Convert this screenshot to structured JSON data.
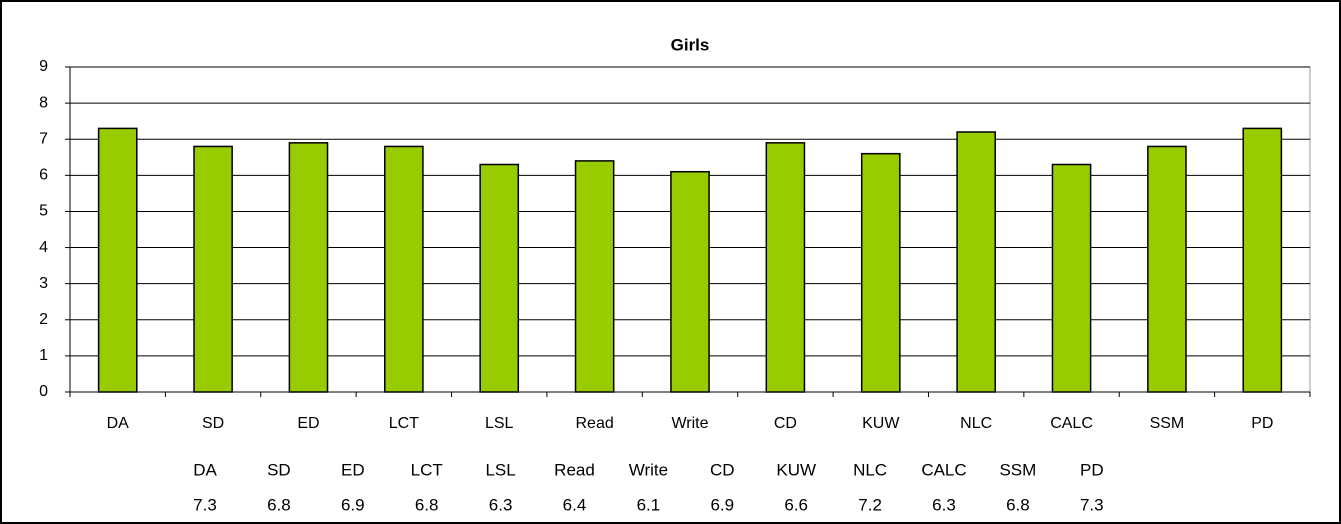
{
  "chart_data": {
    "type": "bar",
    "title": "Girls",
    "categories": [
      "DA",
      "SD",
      "ED",
      "LCT",
      "LSL",
      "Read",
      "Write",
      "CD",
      "KUW",
      "NLC",
      "CALC",
      "SSM",
      "PD"
    ],
    "values": [
      7.3,
      6.8,
      6.9,
      6.8,
      6.3,
      6.4,
      6.1,
      6.9,
      6.6,
      7.2,
      6.3,
      6.8,
      7.3
    ],
    "color": "#99cc00",
    "ylim": [
      0,
      9
    ],
    "yticks": [
      0,
      1,
      2,
      3,
      4,
      5,
      6,
      7,
      8,
      9
    ],
    "grid": true
  }
}
